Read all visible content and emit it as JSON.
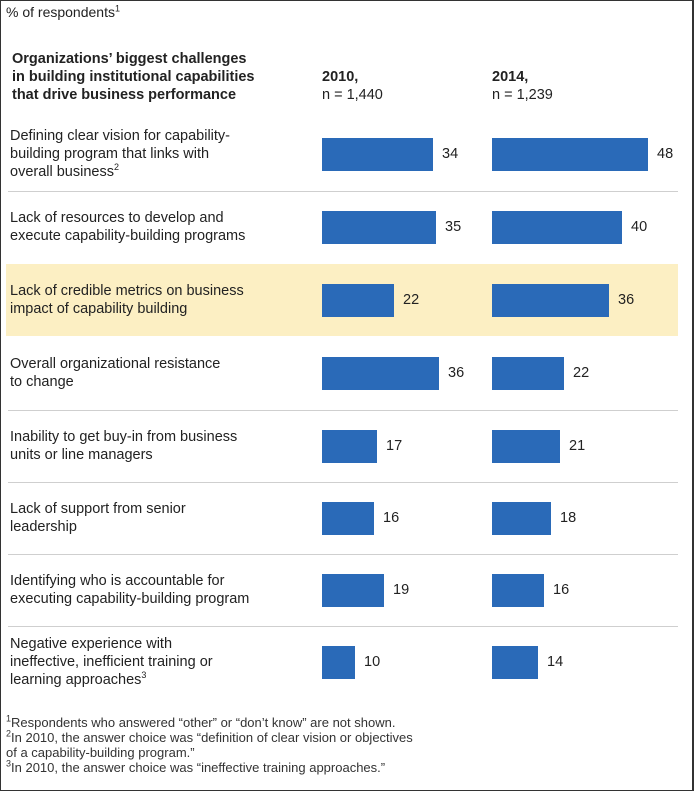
{
  "unit_label": "% of respondents",
  "unit_note": "1",
  "header": {
    "title_lines": [
      "Organizations’ biggest challenges",
      "in building institutional capabilities",
      "that drive business performance"
    ],
    "col_2010": {
      "year": "2010,",
      "n": "n = 1,440"
    },
    "col_2014": {
      "year": "2014,",
      "n": "n = 1,239"
    }
  },
  "chart_data": {
    "type": "bar",
    "title": "Organizations’ biggest challenges in building institutional capabilities that drive business performance",
    "ylabel": "% of respondents",
    "categories": [
      "Defining clear vision for capability-building program that links with overall business",
      "Lack of resources to develop and execute capability-building programs",
      "Lack of credible metrics on business impact of capability building",
      "Overall organizational resistance to change",
      "Inability to get buy-in from business units or line managers",
      "Lack of support from senior leadership",
      "Identifying who is accountable for executing capability-building program",
      "Negative experience with ineffective, inefficient training or learning approaches"
    ],
    "series": [
      {
        "name": "2010",
        "values": [
          34,
          35,
          22,
          36,
          17,
          16,
          19,
          10
        ]
      },
      {
        "name": "2014",
        "values": [
          48,
          40,
          36,
          22,
          21,
          18,
          16,
          14
        ]
      }
    ],
    "highlighted_index": 2,
    "bar_color": "#2a6ab8",
    "highlight_color": "#fcefc3"
  },
  "rows": [
    {
      "lines": [
        "Defining clear vision for capability-",
        "building program that links with",
        "overall business"
      ],
      "note": "2",
      "v2010": "34",
      "v2014": "48"
    },
    {
      "lines": [
        "Lack of resources to develop and",
        "execute capability-building programs"
      ],
      "note": "",
      "v2010": "35",
      "v2014": "40"
    },
    {
      "lines": [
        "Lack of credible metrics on business",
        "impact of capability building"
      ],
      "note": "",
      "v2010": "22",
      "v2014": "36"
    },
    {
      "lines": [
        "Overall organizational resistance",
        "to change"
      ],
      "note": "",
      "v2010": "36",
      "v2014": "22"
    },
    {
      "lines": [
        "Inability to get buy-in from business",
        "units or line managers"
      ],
      "note": "",
      "v2010": "17",
      "v2014": "21"
    },
    {
      "lines": [
        "Lack of support from senior",
        "leadership"
      ],
      "note": "",
      "v2010": "16",
      "v2014": "18"
    },
    {
      "lines": [
        "Identifying who is accountable for",
        "executing capability-building program"
      ],
      "note": "",
      "v2010": "19",
      "v2014": "16"
    },
    {
      "lines": [
        "Negative experience with",
        "ineffective, inefficient training or",
        "learning approaches"
      ],
      "note": "3",
      "v2010": "10",
      "v2014": "14"
    }
  ],
  "footnotes": [
    {
      "num": "1",
      "text": "Respondents who answered “other” or “don’t know” are not shown."
    },
    {
      "num": "2",
      "text": "In 2010, the answer choice was “definition of clear vision or objectives"
    },
    {
      "num": "",
      "text": " of a capability-building program.”"
    },
    {
      "num": "3",
      "text": "In 2010, the answer choice was “ineffective training approaches.”"
    }
  ]
}
